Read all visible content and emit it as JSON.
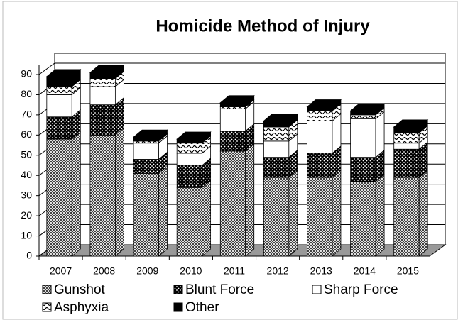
{
  "chart_data": {
    "type": "bar3d_stacked",
    "title": "Homicide Method of Injury",
    "categories": [
      "2007",
      "2008",
      "2009",
      "2010",
      "2011",
      "2012",
      "2013",
      "2014",
      "2015"
    ],
    "series": [
      {
        "name": "Gunshot",
        "color": "#000000",
        "pattern": "crosshatch",
        "values": [
          58,
          60,
          41,
          34,
          52,
          39,
          39,
          37,
          39
        ]
      },
      {
        "name": "Blunt Force",
        "color": "#000000",
        "pattern": "dots",
        "values": [
          11,
          15,
          7,
          11,
          10,
          10,
          12,
          12,
          14
        ]
      },
      {
        "name": "Sharp Force",
        "color": "#000000",
        "pattern": "none",
        "values": [
          11,
          9,
          8,
          6,
          11,
          8,
          16,
          19,
          3
        ]
      },
      {
        "name": "Asphyxia",
        "color": "#000000",
        "pattern": "wave",
        "values": [
          4,
          4,
          1,
          5,
          1,
          7,
          5,
          2,
          5
        ]
      },
      {
        "name": "Other",
        "color": "#000000",
        "pattern": "solid",
        "values": [
          5,
          3,
          2,
          2,
          2,
          3,
          2,
          2,
          3
        ]
      }
    ],
    "ylim": [
      0,
      90
    ],
    "yticks": [
      0,
      10,
      20,
      30,
      40,
      50,
      60,
      70,
      80,
      90
    ],
    "grid": true,
    "legend": "bottom"
  }
}
